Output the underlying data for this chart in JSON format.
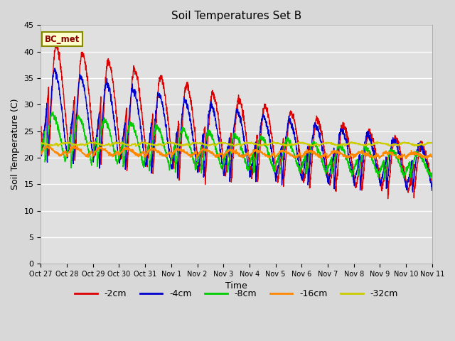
{
  "title": "Soil Temperatures Set B",
  "xlabel": "Time",
  "ylabel": "Soil Temperature (C)",
  "ylim": [
    0,
    45
  ],
  "yticks": [
    0,
    5,
    10,
    15,
    20,
    25,
    30,
    35,
    40,
    45
  ],
  "annotation": "BC_met",
  "legend_entries": [
    "-2cm",
    "-4cm",
    "-8cm",
    "-16cm",
    "-32cm"
  ],
  "line_colors": [
    "#dd0000",
    "#0000cc",
    "#00cc00",
    "#ff8800",
    "#cccc00"
  ],
  "days": 15,
  "points_per_day": 144,
  "x_labels": [
    "Oct 27",
    "Oct 28",
    "Oct 29",
    "Oct 30",
    "Oct 31",
    "Nov 1",
    "Nov 2",
    "Nov 3",
    "Nov 4",
    "Nov 5",
    "Nov 6",
    "Nov 7",
    "Nov 8",
    "Nov 9",
    "Nov 10",
    "Nov 11"
  ],
  "figsize": [
    6.4,
    4.8
  ],
  "dpi": 100
}
